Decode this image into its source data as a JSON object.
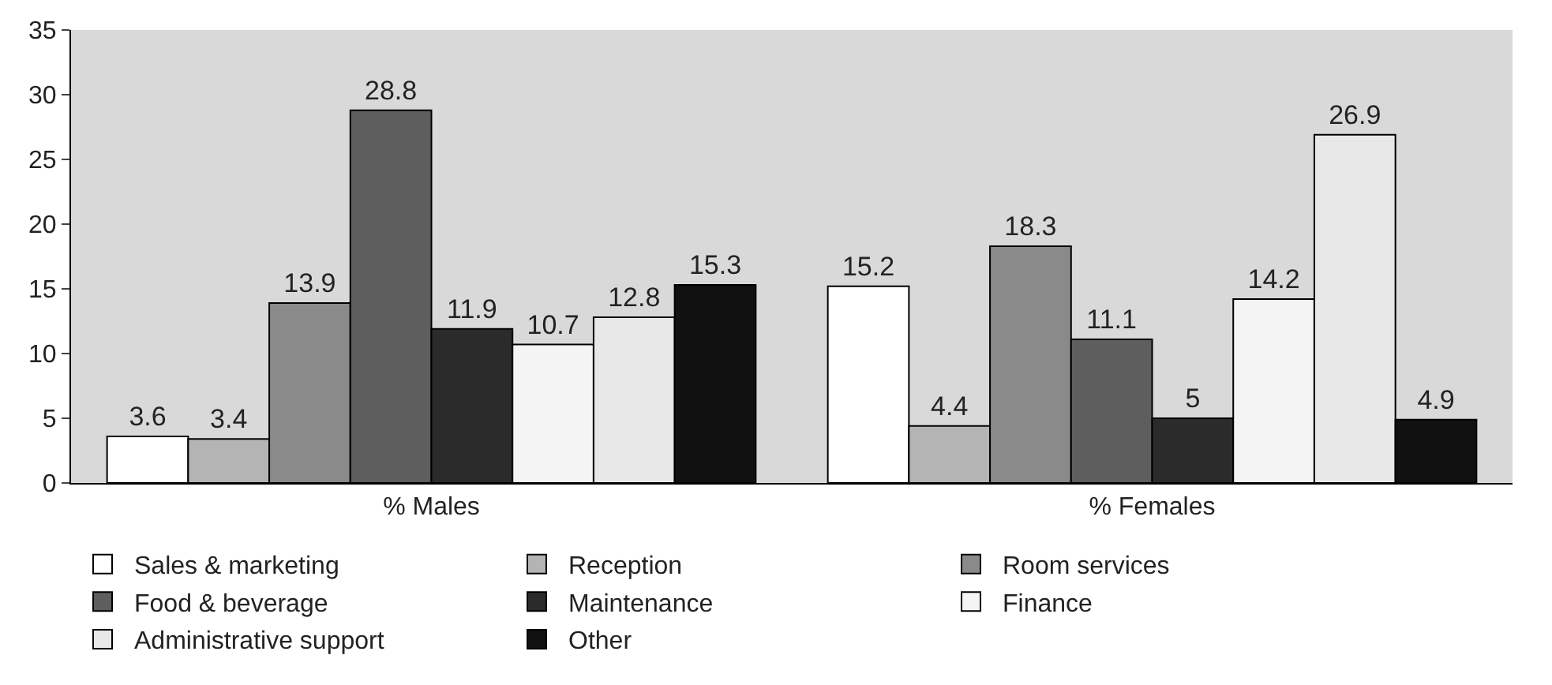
{
  "chart_data": {
    "type": "bar",
    "categories": [
      "% Males",
      "% Females"
    ],
    "series": [
      {
        "name": "Sales & marketing",
        "color": "#ffffff",
        "values": [
          3.6,
          15.2
        ]
      },
      {
        "name": "Reception",
        "color": "#b4b4b4",
        "values": [
          3.4,
          4.4
        ]
      },
      {
        "name": "Room services",
        "color": "#8a8a8a",
        "values": [
          13.9,
          18.3
        ]
      },
      {
        "name": "Food & beverage",
        "color": "#5e5e5e",
        "values": [
          28.8,
          11.1
        ]
      },
      {
        "name": "Maintenance",
        "color": "#2b2b2b",
        "values": [
          11.9,
          5
        ]
      },
      {
        "name": "Finance",
        "color": "#f4f4f4",
        "values": [
          10.7,
          14.2
        ]
      },
      {
        "name": "Administrative support",
        "color": "#e8e8e8",
        "values": [
          12.8,
          26.9
        ]
      },
      {
        "name": "Other",
        "color": "#111111",
        "values": [
          15.3,
          4.9
        ]
      }
    ],
    "ylim": [
      0,
      35
    ],
    "yticks": [
      0,
      5,
      10,
      15,
      20,
      25,
      30,
      35
    ],
    "grid": false,
    "legend": "bottom",
    "data_labels": true
  }
}
